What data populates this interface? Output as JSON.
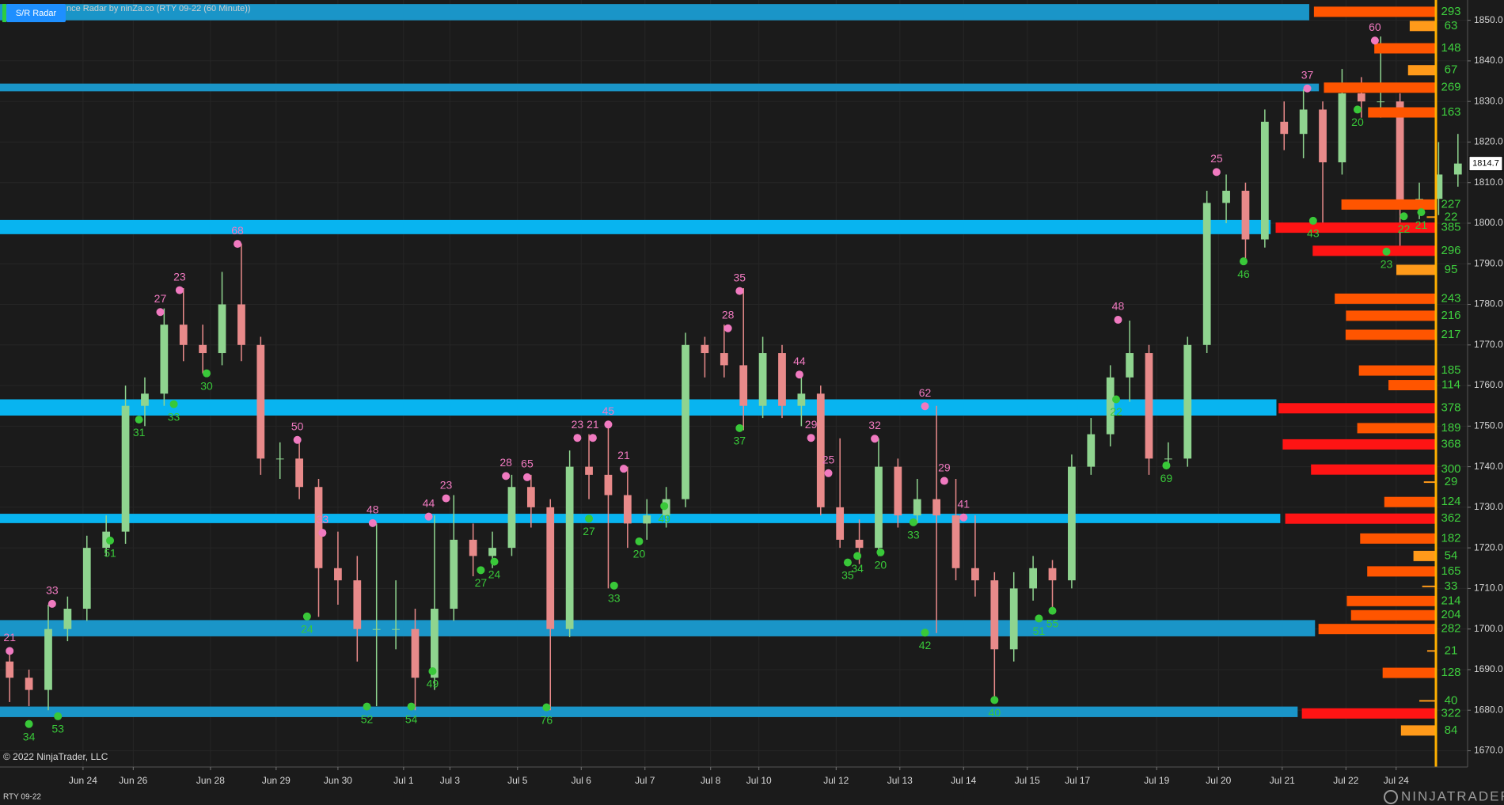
{
  "chart_data": {
    "type": "candlestick",
    "title": "nce Radar by ninZa.co (RTY 09-22 (60 Minute))",
    "button": "S/R Radar",
    "copyright": "© 2022 NinjaTrader, LLC",
    "instrument": "RTY 09-22",
    "brand": "NINJATRADER",
    "last_price": 1814.7,
    "xlim": [
      0,
      76
    ],
    "ylim": [
      1666,
      1855
    ],
    "grid": true,
    "up_color": "#8fd48f",
    "down_color": "#e88a8a",
    "high_color": "#f07ac0",
    "low_color": "#39c839",
    "xticks": [
      {
        "value": 4.3,
        "label": "Jun 24"
      },
      {
        "value": 6.9,
        "label": "Jun 26"
      },
      {
        "value": 10.9,
        "label": "Jun 28"
      },
      {
        "value": 14.3,
        "label": "Jun 29"
      },
      {
        "value": 17.5,
        "label": "Jun 30"
      },
      {
        "value": 20.9,
        "label": "Jul 1"
      },
      {
        "value": 23.3,
        "label": "Jul 3"
      },
      {
        "value": 26.8,
        "label": "Jul 5"
      },
      {
        "value": 30.1,
        "label": "Jul 6"
      },
      {
        "value": 33.4,
        "label": "Jul 7"
      },
      {
        "value": 36.8,
        "label": "Jul 8"
      },
      {
        "value": 39.3,
        "label": "Jul 10"
      },
      {
        "value": 43.3,
        "label": "Jul 12"
      },
      {
        "value": 46.6,
        "label": "Jul 13"
      },
      {
        "value": 49.9,
        "label": "Jul 14"
      },
      {
        "value": 53.2,
        "label": "Jul 15"
      },
      {
        "value": 55.8,
        "label": "Jul 17"
      },
      {
        "value": 59.9,
        "label": "Jul 19"
      },
      {
        "value": 63.1,
        "label": "Jul 20"
      },
      {
        "value": 66.4,
        "label": "Jul 21"
      },
      {
        "value": 69.7,
        "label": "Jul 22"
      },
      {
        "value": 72.3,
        "label": "Jul 24"
      }
    ],
    "yticks": [
      {
        "value": 1670,
        "label": "1670.0"
      },
      {
        "value": 1680,
        "label": "1680.0"
      },
      {
        "value": 1690,
        "label": "1690.0"
      },
      {
        "value": 1700,
        "label": "1700.0"
      },
      {
        "value": 1710,
        "label": "1710.0"
      },
      {
        "value": 1720,
        "label": "1720.0"
      },
      {
        "value": 1730,
        "label": "1730.0"
      },
      {
        "value": 1740,
        "label": "1740.0"
      },
      {
        "value": 1750,
        "label": "1750.0"
      },
      {
        "value": 1760,
        "label": "1760.0"
      },
      {
        "value": 1770,
        "label": "1770.0"
      },
      {
        "value": 1780,
        "label": "1780.0"
      },
      {
        "value": 1790,
        "label": "1790.0"
      },
      {
        "value": 1800,
        "label": "1800.0"
      },
      {
        "value": 1810,
        "label": "1810.0"
      },
      {
        "value": 1820,
        "label": "1820.0"
      },
      {
        "value": 1830,
        "label": "1830.0"
      },
      {
        "value": 1840,
        "label": "1840.0"
      },
      {
        "value": 1850,
        "label": "1850.0"
      }
    ],
    "candles": [
      [
        1692,
        1695,
        1682,
        1688
      ],
      [
        1688,
        1690,
        1681,
        1685
      ],
      [
        1685,
        1706,
        1680,
        1700
      ],
      [
        1700,
        1708,
        1697,
        1705
      ],
      [
        1705,
        1723,
        1702,
        1720
      ],
      [
        1720,
        1728,
        1718,
        1724
      ],
      [
        1724,
        1760,
        1721,
        1755
      ],
      [
        1755,
        1762,
        1750,
        1758
      ],
      [
        1758,
        1779,
        1755,
        1775
      ],
      [
        1775,
        1784,
        1766,
        1770
      ],
      [
        1770,
        1775,
        1763,
        1768
      ],
      [
        1768,
        1788,
        1765,
        1780
      ],
      [
        1780,
        1795,
        1766,
        1770
      ],
      [
        1770,
        1772,
        1738,
        1742
      ],
      [
        1742,
        1746,
        1737,
        1742
      ],
      [
        1742,
        1747,
        1732,
        1735
      ],
      [
        1735,
        1737,
        1703,
        1715
      ],
      [
        1715,
        1724,
        1706,
        1712
      ],
      [
        1712,
        1718,
        1692,
        1700
      ],
      [
        1700,
        1726,
        1681,
        1700
      ],
      [
        1700,
        1712,
        1695,
        1700
      ],
      [
        1700,
        1705,
        1680,
        1688
      ],
      [
        1688,
        1728,
        1685,
        1705
      ],
      [
        1705,
        1733,
        1702,
        1722
      ],
      [
        1722,
        1726,
        1713,
        1718
      ],
      [
        1718,
        1724,
        1715,
        1720
      ],
      [
        1720,
        1738,
        1718,
        1735
      ],
      [
        1735,
        1738,
        1725,
        1730
      ],
      [
        1730,
        1732,
        1680,
        1700
      ],
      [
        1700,
        1744,
        1698,
        1740
      ],
      [
        1740,
        1748,
        1732,
        1738
      ],
      [
        1738,
        1751,
        1710,
        1733
      ],
      [
        1733,
        1740,
        1720,
        1726
      ],
      [
        1726,
        1732,
        1722,
        1728
      ],
      [
        1728,
        1735,
        1725,
        1732
      ],
      [
        1732,
        1773,
        1730,
        1770
      ],
      [
        1770,
        1772,
        1762,
        1768
      ],
      [
        1768,
        1775,
        1762,
        1765
      ],
      [
        1765,
        1784,
        1749,
        1755
      ],
      [
        1755,
        1772,
        1752,
        1768
      ],
      [
        1768,
        1770,
        1752,
        1755
      ],
      [
        1755,
        1763,
        1750,
        1758
      ],
      [
        1758,
        1760,
        1728,
        1730
      ],
      [
        1730,
        1747,
        1720,
        1722
      ],
      [
        1722,
        1727,
        1716,
        1720
      ],
      [
        1720,
        1747,
        1718,
        1740
      ],
      [
        1740,
        1742,
        1725,
        1728
      ],
      [
        1728,
        1737,
        1726,
        1732
      ],
      [
        1732,
        1755,
        1699,
        1728
      ],
      [
        1728,
        1737,
        1712,
        1715
      ],
      [
        1715,
        1728,
        1708,
        1712
      ],
      [
        1712,
        1714,
        1683,
        1695
      ],
      [
        1695,
        1714,
        1692,
        1710
      ],
      [
        1710,
        1718,
        1707,
        1715
      ],
      [
        1715,
        1717,
        1704,
        1712
      ],
      [
        1712,
        1743,
        1710,
        1740
      ],
      [
        1740,
        1752,
        1738,
        1748
      ],
      [
        1748,
        1765,
        1745,
        1762
      ],
      [
        1762,
        1776,
        1756,
        1768
      ],
      [
        1768,
        1770,
        1738,
        1742
      ],
      [
        1742,
        1746,
        1740,
        1742
      ],
      [
        1742,
        1772,
        1740,
        1770
      ],
      [
        1770,
        1808,
        1768,
        1805
      ],
      [
        1805,
        1812,
        1800,
        1808
      ],
      [
        1808,
        1810,
        1790,
        1796
      ],
      [
        1796,
        1828,
        1794,
        1825
      ],
      [
        1825,
        1830,
        1818,
        1822
      ],
      [
        1822,
        1833,
        1816,
        1828
      ],
      [
        1828,
        1830,
        1800,
        1815
      ],
      [
        1815,
        1838,
        1812,
        1832
      ],
      [
        1832,
        1836,
        1826,
        1830
      ],
      [
        1830,
        1846,
        1826,
        1830
      ],
      [
        1830,
        1832,
        1793,
        1805
      ],
      [
        1805,
        1810,
        1801,
        1806
      ],
      [
        1806,
        1820,
        1802,
        1812
      ],
      [
        1812,
        1822,
        1809,
        1814.7
      ]
    ],
    "zones": [
      {
        "top": 1854,
        "bottom": 1850,
        "end": 67.8,
        "color": "#1a95c8"
      },
      {
        "top": 1834.4,
        "bottom": 1832.5,
        "end": 68.3,
        "color": "#1a95c8"
      },
      {
        "top": 1800.8,
        "bottom": 1797.3,
        "end": 65.8,
        "color": "#08b4f0"
      },
      {
        "top": 1756.6,
        "bottom": 1752.6,
        "end": 66.1,
        "color": "#08b4f0"
      },
      {
        "top": 1728.4,
        "bottom": 1726.1,
        "end": 66.3,
        "color": "#08b4f0"
      },
      {
        "top": 1702.2,
        "bottom": 1698.2,
        "end": 68.1,
        "color": "#1a95c8"
      },
      {
        "top": 1680.9,
        "bottom": 1678.3,
        "end": 67.2,
        "color": "#1a95c8"
      }
    ],
    "volume_bins": [
      {
        "price": 1852.1,
        "value": 293,
        "color": "#ff5500"
      },
      {
        "price": 1848.6,
        "value": 63,
        "color": "#ff9a1a"
      },
      {
        "price": 1843.1,
        "value": 148,
        "color": "#ff5500"
      },
      {
        "price": 1837.7,
        "value": 67,
        "color": "#ff9a1a"
      },
      {
        "price": 1833.4,
        "value": 269,
        "color": "#ff5500"
      },
      {
        "price": 1827.3,
        "value": 163,
        "color": "#ff5500"
      },
      {
        "price": 1804.6,
        "value": 227,
        "color": "#ff5500"
      },
      {
        "price": 1801.5,
        "value": 22,
        "color": "#ff9a1a"
      },
      {
        "price": 1798.9,
        "value": 385,
        "color": "#ff1414"
      },
      {
        "price": 1793.2,
        "value": 296,
        "color": "#ff1414"
      },
      {
        "price": 1788.5,
        "value": 95,
        "color": "#ff9a1a"
      },
      {
        "price": 1781.4,
        "value": 243,
        "color": "#ff5500"
      },
      {
        "price": 1777.2,
        "value": 216,
        "color": "#ff5500"
      },
      {
        "price": 1772.5,
        "value": 217,
        "color": "#ff5500"
      },
      {
        "price": 1763.7,
        "value": 185,
        "color": "#ff5500"
      },
      {
        "price": 1760.1,
        "value": 114,
        "color": "#ff5500"
      },
      {
        "price": 1754.4,
        "value": 378,
        "color": "#ff1414"
      },
      {
        "price": 1749.5,
        "value": 189,
        "color": "#ff5500"
      },
      {
        "price": 1745.5,
        "value": 368,
        "color": "#ff1414"
      },
      {
        "price": 1739.3,
        "value": 300,
        "color": "#ff1414"
      },
      {
        "price": 1736.2,
        "value": 29,
        "color": "#ff9a1a"
      },
      {
        "price": 1731.3,
        "value": 124,
        "color": "#ff5500"
      },
      {
        "price": 1727.2,
        "value": 362,
        "color": "#ff1414"
      },
      {
        "price": 1722.3,
        "value": 182,
        "color": "#ff5500"
      },
      {
        "price": 1718.0,
        "value": 54,
        "color": "#ff9a1a"
      },
      {
        "price": 1714.2,
        "value": 165,
        "color": "#ff5500"
      },
      {
        "price": 1710.5,
        "value": 33,
        "color": "#ff9a1a"
      },
      {
        "price": 1706.9,
        "value": 214,
        "color": "#ff5500"
      },
      {
        "price": 1703.4,
        "value": 204,
        "color": "#ff5500"
      },
      {
        "price": 1700.0,
        "value": 282,
        "color": "#ff5500"
      },
      {
        "price": 1694.6,
        "value": 21,
        "color": "#ff9a1a"
      },
      {
        "price": 1689.2,
        "value": 128,
        "color": "#ff5500"
      },
      {
        "price": 1682.3,
        "value": 40,
        "color": "#ff9a1a"
      },
      {
        "price": 1679.2,
        "value": 322,
        "color": "#ff1414"
      },
      {
        "price": 1675.0,
        "value": 84,
        "color": "#ff9a1a"
      }
    ],
    "pivot_highs": [
      {
        "x": 0.5,
        "price": 1694.6,
        "label": 21
      },
      {
        "x": 2.7,
        "price": 1706.2,
        "label": 33
      },
      {
        "x": 8.3,
        "price": 1778.1,
        "label": 27
      },
      {
        "x": 9.3,
        "price": 1783.5,
        "label": 23
      },
      {
        "x": 12.3,
        "price": 1794.9,
        "label": 68
      },
      {
        "x": 15.4,
        "price": 1746.6,
        "label": 50
      },
      {
        "x": 16.7,
        "price": 1723.7,
        "label": 33
      },
      {
        "x": 19.3,
        "price": 1726.1,
        "label": 48
      },
      {
        "x": 22.2,
        "price": 1727.7,
        "label": 44
      },
      {
        "x": 23.1,
        "price": 1732.2,
        "label": 23
      },
      {
        "x": 26.2,
        "price": 1737.7,
        "label": 28
      },
      {
        "x": 27.3,
        "price": 1737.4,
        "label": 65
      },
      {
        "x": 29.9,
        "price": 1747.1,
        "label": 23
      },
      {
        "x": 30.7,
        "price": 1747.1,
        "label": 21
      },
      {
        "x": 31.5,
        "price": 1750.4,
        "label": 45
      },
      {
        "x": 32.3,
        "price": 1739.5,
        "label": 21
      },
      {
        "x": 37.7,
        "price": 1774.1,
        "label": 28
      },
      {
        "x": 38.3,
        "price": 1783.3,
        "label": 35
      },
      {
        "x": 41.4,
        "price": 1762.7,
        "label": 44
      },
      {
        "x": 42.0,
        "price": 1747.1,
        "label": 29
      },
      {
        "x": 42.9,
        "price": 1738.4,
        "label": 25
      },
      {
        "x": 45.3,
        "price": 1746.9,
        "label": 32
      },
      {
        "x": 47.9,
        "price": 1754.9,
        "label": 62
      },
      {
        "x": 48.9,
        "price": 1736.5,
        "label": 29
      },
      {
        "x": 49.9,
        "price": 1727.5,
        "label": 41
      },
      {
        "x": 57.9,
        "price": 1776.2,
        "label": 48
      },
      {
        "x": 63.0,
        "price": 1812.6,
        "label": 25
      },
      {
        "x": 67.7,
        "price": 1833.2,
        "label": 37
      },
      {
        "x": 71.2,
        "price": 1845.0,
        "label": 60
      }
    ],
    "pivot_lows": [
      {
        "x": 1.5,
        "price": 1676.6,
        "label": 34
      },
      {
        "x": 3.0,
        "price": 1678.5,
        "label": 53
      },
      {
        "x": 5.7,
        "price": 1721.8,
        "label": 51
      },
      {
        "x": 7.2,
        "price": 1751.6,
        "label": 31
      },
      {
        "x": 9.0,
        "price": 1755.4,
        "label": 33
      },
      {
        "x": 10.7,
        "price": 1763.0,
        "label": 30
      },
      {
        "x": 15.9,
        "price": 1703.1,
        "label": 24
      },
      {
        "x": 19.0,
        "price": 1680.9,
        "label": 52
      },
      {
        "x": 21.3,
        "price": 1680.9,
        "label": 54
      },
      {
        "x": 22.4,
        "price": 1689.6,
        "label": 49
      },
      {
        "x": 24.9,
        "price": 1714.5,
        "label": 27
      },
      {
        "x": 25.6,
        "price": 1716.6,
        "label": 24
      },
      {
        "x": 28.3,
        "price": 1680.7,
        "label": 76
      },
      {
        "x": 30.5,
        "price": 1727.2,
        "label": 27
      },
      {
        "x": 31.8,
        "price": 1710.7,
        "label": 33
      },
      {
        "x": 33.1,
        "price": 1721.6,
        "label": 20
      },
      {
        "x": 34.4,
        "price": 1730.3,
        "label": 49
      },
      {
        "x": 38.3,
        "price": 1749.5,
        "label": 37
      },
      {
        "x": 43.9,
        "price": 1716.4,
        "label": 35
      },
      {
        "x": 44.4,
        "price": 1718.0,
        "label": 34
      },
      {
        "x": 45.6,
        "price": 1718.9,
        "label": 20
      },
      {
        "x": 47.3,
        "price": 1726.3,
        "label": 33
      },
      {
        "x": 47.9,
        "price": 1699.1,
        "label": 42
      },
      {
        "x": 51.5,
        "price": 1682.5,
        "label": 40
      },
      {
        "x": 53.8,
        "price": 1702.6,
        "label": 51
      },
      {
        "x": 54.5,
        "price": 1704.5,
        "label": 55
      },
      {
        "x": 57.8,
        "price": 1756.6,
        "label": 22
      },
      {
        "x": 60.4,
        "price": 1740.3,
        "label": 69
      },
      {
        "x": 64.4,
        "price": 1790.6,
        "label": 46
      },
      {
        "x": 68.0,
        "price": 1800.6,
        "label": 43
      },
      {
        "x": 70.3,
        "price": 1828.0,
        "label": 20
      },
      {
        "x": 71.8,
        "price": 1793.0,
        "label": 23
      },
      {
        "x": 72.7,
        "price": 1801.7,
        "label": 22
      },
      {
        "x": 73.6,
        "price": 1802.7,
        "label": 21
      }
    ]
  }
}
